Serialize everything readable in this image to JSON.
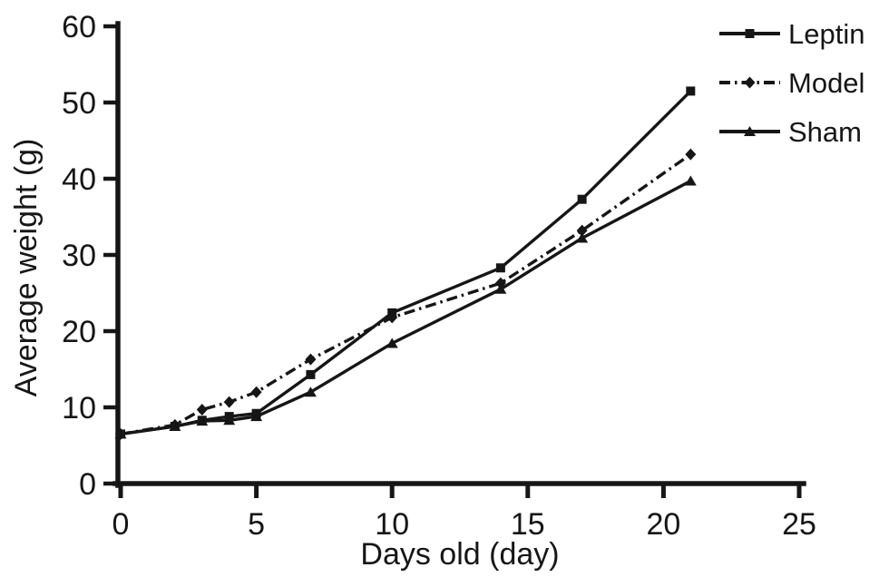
{
  "colors": {
    "ink": "#161616",
    "background": "#ffffff"
  },
  "chart_data": {
    "type": "line",
    "title": "",
    "xlabel": "Days old (day)",
    "ylabel": "Average weight (g)",
    "xlim": [
      0,
      25
    ],
    "ylim": [
      0,
      60
    ],
    "x_ticks": [
      0,
      5,
      10,
      15,
      20,
      25
    ],
    "y_ticks": [
      0,
      10,
      20,
      30,
      40,
      50,
      60
    ],
    "grid": false,
    "legend_position": "top-right",
    "x": [
      0,
      2,
      3,
      4,
      5,
      7,
      10,
      14,
      17,
      21
    ],
    "series": [
      {
        "name": "Leptin",
        "marker": "square",
        "line_style": "solid",
        "values": [
          6.5,
          7.5,
          8.3,
          8.8,
          9.2,
          14.3,
          22.4,
          28.3,
          37.3,
          51.5
        ]
      },
      {
        "name": "Model",
        "marker": "diamond",
        "line_style": "dash-dot",
        "values": [
          6.5,
          7.7,
          9.7,
          10.7,
          12.0,
          16.3,
          21.8,
          26.3,
          33.2,
          43.2
        ]
      },
      {
        "name": "Sham",
        "marker": "triangle",
        "line_style": "solid",
        "values": [
          6.5,
          7.5,
          8.2,
          8.3,
          8.8,
          12.0,
          18.4,
          25.5,
          32.2,
          39.7
        ]
      }
    ]
  }
}
